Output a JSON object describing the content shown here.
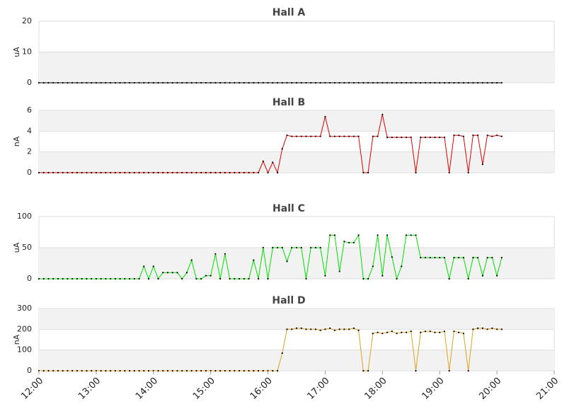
{
  "chart_data": [
    {
      "type": "line",
      "title": "Hall A",
      "ylabel": "uA",
      "color": "#000000",
      "ylim": [
        0,
        20
      ],
      "yticks": [
        0,
        10,
        20
      ],
      "x": [
        "12:00",
        "12:05",
        "12:10",
        "12:15",
        "12:20",
        "12:25",
        "12:30",
        "12:35",
        "12:40",
        "12:45",
        "12:50",
        "12:55",
        "13:00",
        "13:05",
        "13:10",
        "13:15",
        "13:20",
        "13:25",
        "13:30",
        "13:35",
        "13:40",
        "13:45",
        "13:50",
        "13:55",
        "14:00",
        "14:05",
        "14:10",
        "14:15",
        "14:20",
        "14:25",
        "14:30",
        "14:35",
        "14:40",
        "14:45",
        "14:50",
        "14:55",
        "15:00",
        "15:05",
        "15:10",
        "15:15",
        "15:20",
        "15:25",
        "15:30",
        "15:35",
        "15:40",
        "15:45",
        "15:50",
        "15:55",
        "16:00",
        "16:05",
        "16:10",
        "16:15",
        "16:20",
        "16:25",
        "16:30",
        "16:35",
        "16:40",
        "16:45",
        "16:50",
        "16:55",
        "17:00",
        "17:05",
        "17:10",
        "17:15",
        "17:20",
        "17:25",
        "17:30",
        "17:35",
        "17:40",
        "17:45",
        "17:50",
        "17:55",
        "18:00",
        "18:05",
        "18:10",
        "18:15",
        "18:20",
        "18:25",
        "18:30",
        "18:35",
        "18:40",
        "18:45",
        "18:50",
        "18:55",
        "19:00",
        "19:05",
        "19:10",
        "19:15",
        "19:20",
        "19:25",
        "19:30",
        "19:35",
        "19:40",
        "19:45",
        "19:50",
        "19:55",
        "20:00",
        "20:05"
      ],
      "values": [
        0,
        0,
        0,
        0,
        0,
        0,
        0,
        0,
        0,
        0,
        0,
        0,
        0,
        0,
        0,
        0,
        0,
        0,
        0,
        0,
        0,
        0,
        0,
        0,
        0,
        0,
        0,
        0,
        0,
        0,
        0,
        0,
        0,
        0,
        0,
        0,
        0,
        0,
        0,
        0,
        0,
        0,
        0,
        0,
        0,
        0,
        0,
        0,
        0,
        0,
        0,
        0,
        0,
        0,
        0,
        0,
        0,
        0,
        0,
        0,
        0,
        0,
        0,
        0,
        0,
        0,
        0,
        0,
        0,
        0,
        0,
        0,
        0,
        0,
        0,
        0,
        0,
        0,
        0,
        0,
        0,
        0,
        0,
        0,
        0,
        0,
        0,
        0,
        0,
        0,
        0,
        0,
        0,
        0,
        0,
        0,
        0,
        0
      ]
    },
    {
      "type": "line",
      "title": "Hall B",
      "ylabel": "nA",
      "color": "#e00000",
      "ylim": [
        0,
        6
      ],
      "yticks": [
        0,
        2,
        4,
        6
      ],
      "x": [
        "12:00",
        "12:05",
        "12:10",
        "12:15",
        "12:20",
        "12:25",
        "12:30",
        "12:35",
        "12:40",
        "12:45",
        "12:50",
        "12:55",
        "13:00",
        "13:05",
        "13:10",
        "13:15",
        "13:20",
        "13:25",
        "13:30",
        "13:35",
        "13:40",
        "13:45",
        "13:50",
        "13:55",
        "14:00",
        "14:05",
        "14:10",
        "14:15",
        "14:20",
        "14:25",
        "14:30",
        "14:35",
        "14:40",
        "14:45",
        "14:50",
        "14:55",
        "15:00",
        "15:05",
        "15:10",
        "15:15",
        "15:20",
        "15:25",
        "15:30",
        "15:35",
        "15:40",
        "15:45",
        "15:50",
        "15:55",
        "16:00",
        "16:05",
        "16:10",
        "16:15",
        "16:20",
        "16:25",
        "16:30",
        "16:35",
        "16:40",
        "16:45",
        "16:50",
        "16:55",
        "17:00",
        "17:05",
        "17:10",
        "17:15",
        "17:20",
        "17:25",
        "17:30",
        "17:35",
        "17:40",
        "17:45",
        "17:50",
        "17:55",
        "18:00",
        "18:05",
        "18:10",
        "18:15",
        "18:20",
        "18:25",
        "18:30",
        "18:35",
        "18:40",
        "18:45",
        "18:50",
        "18:55",
        "19:00",
        "19:05",
        "19:10",
        "19:15",
        "19:20",
        "19:25",
        "19:30",
        "19:35",
        "19:40",
        "19:45",
        "19:50",
        "19:55",
        "20:00",
        "20:05"
      ],
      "values": [
        0,
        0,
        0,
        0,
        0,
        0,
        0,
        0,
        0,
        0,
        0,
        0,
        0,
        0,
        0,
        0,
        0,
        0,
        0,
        0,
        0,
        0,
        0,
        0,
        0,
        0,
        0,
        0,
        0,
        0,
        0,
        0,
        0,
        0,
        0,
        0,
        0,
        0,
        0,
        0,
        0,
        0,
        0,
        0,
        0,
        0,
        0,
        1.1,
        0,
        1.0,
        0,
        2.3,
        3.6,
        3.5,
        3.5,
        3.5,
        3.5,
        3.5,
        3.5,
        3.5,
        5.4,
        3.5,
        3.5,
        3.5,
        3.5,
        3.5,
        3.5,
        3.5,
        0,
        0,
        3.5,
        3.5,
        5.6,
        3.4,
        3.4,
        3.4,
        3.4,
        3.4,
        3.4,
        0,
        3.4,
        3.4,
        3.4,
        3.4,
        3.4,
        3.4,
        0,
        3.6,
        3.6,
        3.5,
        0,
        3.6,
        3.6,
        0.8,
        3.6,
        3.5,
        3.6,
        3.5
      ]
    },
    {
      "type": "line",
      "title": "Hall C",
      "ylabel": "uA",
      "color": "#00e000",
      "ylim": [
        0,
        100
      ],
      "yticks": [
        0,
        50,
        100
      ],
      "x": [
        "12:00",
        "12:05",
        "12:10",
        "12:15",
        "12:20",
        "12:25",
        "12:30",
        "12:35",
        "12:40",
        "12:45",
        "12:50",
        "12:55",
        "13:00",
        "13:05",
        "13:10",
        "13:15",
        "13:20",
        "13:25",
        "13:30",
        "13:35",
        "13:40",
        "13:45",
        "13:50",
        "13:55",
        "14:00",
        "14:05",
        "14:10",
        "14:15",
        "14:20",
        "14:25",
        "14:30",
        "14:35",
        "14:40",
        "14:45",
        "14:50",
        "14:55",
        "15:00",
        "15:05",
        "15:10",
        "15:15",
        "15:20",
        "15:25",
        "15:30",
        "15:35",
        "15:40",
        "15:45",
        "15:50",
        "15:55",
        "16:00",
        "16:05",
        "16:10",
        "16:15",
        "16:20",
        "16:25",
        "16:30",
        "16:35",
        "16:40",
        "16:45",
        "16:50",
        "16:55",
        "17:00",
        "17:05",
        "17:10",
        "17:15",
        "17:20",
        "17:25",
        "17:30",
        "17:35",
        "17:40",
        "17:45",
        "17:50",
        "17:55",
        "18:00",
        "18:05",
        "18:10",
        "18:15",
        "18:20",
        "18:25",
        "18:30",
        "18:35",
        "18:40",
        "18:45",
        "18:50",
        "18:55",
        "19:00",
        "19:05",
        "19:10",
        "19:15",
        "19:20",
        "19:25",
        "19:30",
        "19:35",
        "19:40",
        "19:45",
        "19:50",
        "19:55",
        "20:00",
        "20:05"
      ],
      "values": [
        0,
        0,
        0,
        0,
        0,
        0,
        0,
        0,
        0,
        0,
        0,
        0,
        0,
        0,
        0,
        0,
        0,
        0,
        0,
        0,
        0,
        0,
        20,
        0,
        20,
        0,
        10,
        10,
        10,
        10,
        0,
        10,
        30,
        0,
        0,
        5,
        5,
        40,
        0,
        40,
        0,
        0,
        0,
        0,
        0,
        30,
        0,
        50,
        0,
        50,
        50,
        50,
        28,
        50,
        50,
        50,
        0,
        50,
        50,
        50,
        5,
        70,
        70,
        12,
        60,
        58,
        58,
        70,
        0,
        0,
        20,
        70,
        5,
        70,
        35,
        0,
        20,
        70,
        70,
        70,
        34,
        34,
        34,
        34,
        34,
        34,
        0,
        34,
        34,
        34,
        0,
        34,
        34,
        5,
        34,
        34,
        5,
        34
      ]
    },
    {
      "type": "line",
      "title": "Hall D",
      "ylabel": "nA",
      "color": "#e0a020",
      "ylim": [
        0,
        300
      ],
      "yticks": [
        0,
        100,
        200,
        300
      ],
      "xlim": [
        "12:00",
        "21:00"
      ],
      "xticks": [
        "12:00",
        "13:00",
        "14:00",
        "15:00",
        "16:00",
        "17:00",
        "18:00",
        "19:00",
        "20:00",
        "21:00"
      ],
      "x": [
        "12:00",
        "12:05",
        "12:10",
        "12:15",
        "12:20",
        "12:25",
        "12:30",
        "12:35",
        "12:40",
        "12:45",
        "12:50",
        "12:55",
        "13:00",
        "13:05",
        "13:10",
        "13:15",
        "13:20",
        "13:25",
        "13:30",
        "13:35",
        "13:40",
        "13:45",
        "13:50",
        "13:55",
        "14:00",
        "14:05",
        "14:10",
        "14:15",
        "14:20",
        "14:25",
        "14:30",
        "14:35",
        "14:40",
        "14:45",
        "14:50",
        "14:55",
        "15:00",
        "15:05",
        "15:10",
        "15:15",
        "15:20",
        "15:25",
        "15:30",
        "15:35",
        "15:40",
        "15:45",
        "15:50",
        "15:55",
        "16:00",
        "16:05",
        "16:10",
        "16:15",
        "16:20",
        "16:25",
        "16:30",
        "16:35",
        "16:40",
        "16:45",
        "16:50",
        "16:55",
        "17:00",
        "17:05",
        "17:10",
        "17:15",
        "17:20",
        "17:25",
        "17:30",
        "17:35",
        "17:40",
        "17:45",
        "17:50",
        "17:55",
        "18:00",
        "18:05",
        "18:10",
        "18:15",
        "18:20",
        "18:25",
        "18:30",
        "18:35",
        "18:40",
        "18:45",
        "18:50",
        "18:55",
        "19:00",
        "19:05",
        "19:10",
        "19:15",
        "19:20",
        "19:25",
        "19:30",
        "19:35",
        "19:40",
        "19:45",
        "19:50",
        "19:55",
        "20:00",
        "20:05"
      ],
      "values": [
        0,
        0,
        0,
        0,
        0,
        0,
        0,
        0,
        0,
        0,
        0,
        0,
        0,
        0,
        0,
        0,
        0,
        0,
        0,
        0,
        0,
        0,
        0,
        0,
        0,
        0,
        0,
        0,
        0,
        0,
        0,
        0,
        0,
        0,
        0,
        0,
        0,
        0,
        0,
        0,
        0,
        0,
        0,
        0,
        0,
        0,
        0,
        0,
        0,
        0,
        0,
        85,
        200,
        200,
        205,
        205,
        200,
        200,
        200,
        195,
        200,
        205,
        195,
        200,
        200,
        200,
        205,
        195,
        0,
        0,
        180,
        185,
        180,
        185,
        190,
        180,
        185,
        185,
        190,
        0,
        185,
        190,
        190,
        185,
        185,
        190,
        0,
        190,
        185,
        180,
        0,
        200,
        205,
        205,
        200,
        205,
        200,
        200
      ]
    }
  ]
}
